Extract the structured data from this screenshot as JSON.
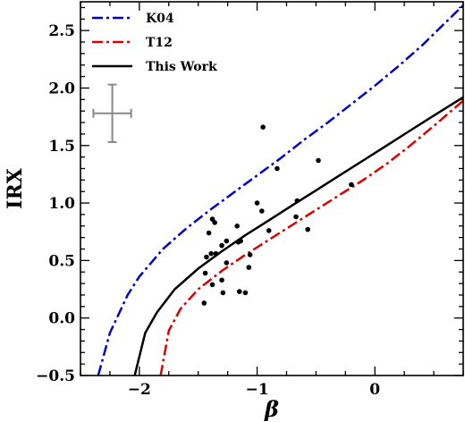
{
  "chart_data": {
    "type": "scatter",
    "title": "",
    "xlabel": "β",
    "ylabel": "IRX",
    "xlim": [
      -2.5,
      0.75
    ],
    "ylim": [
      -0.5,
      2.75
    ],
    "x_ticks": [
      -2,
      -1,
      0
    ],
    "x_tick_labels": [
      "−2",
      "−1",
      "0"
    ],
    "y_ticks": [
      -0.5,
      0.0,
      0.5,
      1.0,
      1.5,
      2.0,
      2.5
    ],
    "y_tick_labels": [
      "−0.5",
      "0.0",
      "0.5",
      "1.0",
      "1.5",
      "2.0",
      "2.5"
    ],
    "legend_position": "top-left",
    "series": [
      {
        "name": "K04",
        "type": "line",
        "style": "dashdot",
        "color": "#0000cc",
        "x": [
          -2.35,
          -2.25,
          -2.1,
          -2.0,
          -1.8,
          -1.6,
          -1.4,
          -1.2,
          -1.0,
          -0.8,
          -0.6,
          -0.4,
          -0.2,
          0.0,
          0.2,
          0.4,
          0.6,
          0.75
        ],
        "y": [
          -0.5,
          -0.13,
          0.2,
          0.36,
          0.6,
          0.78,
          0.94,
          1.09,
          1.24,
          1.39,
          1.55,
          1.7,
          1.86,
          2.02,
          2.19,
          2.37,
          2.57,
          2.72
        ]
      },
      {
        "name": "T12",
        "type": "line",
        "style": "dashdot",
        "color": "#dd0000",
        "x": [
          -1.82,
          -1.75,
          -1.65,
          -1.5,
          -1.3,
          -1.1,
          -0.9,
          -0.7,
          -0.5,
          -0.3,
          -0.1,
          0.1,
          0.3,
          0.5,
          0.75
        ],
        "y": [
          -0.5,
          -0.11,
          0.08,
          0.25,
          0.41,
          0.55,
          0.68,
          0.81,
          0.94,
          1.07,
          1.2,
          1.34,
          1.5,
          1.67,
          1.89
        ]
      },
      {
        "name": "This Work",
        "type": "line",
        "style": "solid",
        "color": "#000000",
        "x": [
          -2.04,
          -1.95,
          -1.85,
          -1.7,
          -1.5,
          -1.3,
          -1.1,
          -0.9,
          -0.7,
          -0.5,
          -0.3,
          -0.1,
          0.1,
          0.3,
          0.5,
          0.75
        ],
        "y": [
          -0.5,
          -0.13,
          0.05,
          0.25,
          0.43,
          0.58,
          0.72,
          0.85,
          0.98,
          1.11,
          1.24,
          1.37,
          1.5,
          1.63,
          1.76,
          1.92
        ]
      },
      {
        "name": "",
        "type": "scatter",
        "color": "#000000",
        "points": [
          [
            -0.95,
            1.66
          ],
          [
            -0.48,
            1.37
          ],
          [
            -0.83,
            1.3
          ],
          [
            -0.2,
            1.16
          ],
          [
            -1.0,
            1.0
          ],
          [
            -0.96,
            0.93
          ],
          [
            -0.66,
            1.02
          ],
          [
            -0.67,
            0.88
          ],
          [
            -0.57,
            0.77
          ],
          [
            -0.9,
            0.76
          ],
          [
            -1.38,
            0.86
          ],
          [
            -1.36,
            0.83
          ],
          [
            -1.17,
            0.8
          ],
          [
            -1.14,
            0.67
          ],
          [
            -1.16,
            0.66
          ],
          [
            -1.26,
            0.67
          ],
          [
            -1.3,
            0.63
          ],
          [
            -1.35,
            0.56
          ],
          [
            -1.39,
            0.56
          ],
          [
            -1.43,
            0.53
          ],
          [
            -1.41,
            0.74
          ],
          [
            -1.06,
            0.55
          ],
          [
            -1.07,
            0.44
          ],
          [
            -1.26,
            0.48
          ],
          [
            -1.44,
            0.39
          ],
          [
            -1.3,
            0.33
          ],
          [
            -1.38,
            0.29
          ],
          [
            -1.29,
            0.22
          ],
          [
            -1.15,
            0.23
          ],
          [
            -1.1,
            0.22
          ],
          [
            -1.45,
            0.13
          ]
        ]
      }
    ],
    "error_bar": {
      "x": -2.23,
      "y": 1.78,
      "xerr": 0.16,
      "yerr": 0.25,
      "color": "#888888"
    }
  }
}
